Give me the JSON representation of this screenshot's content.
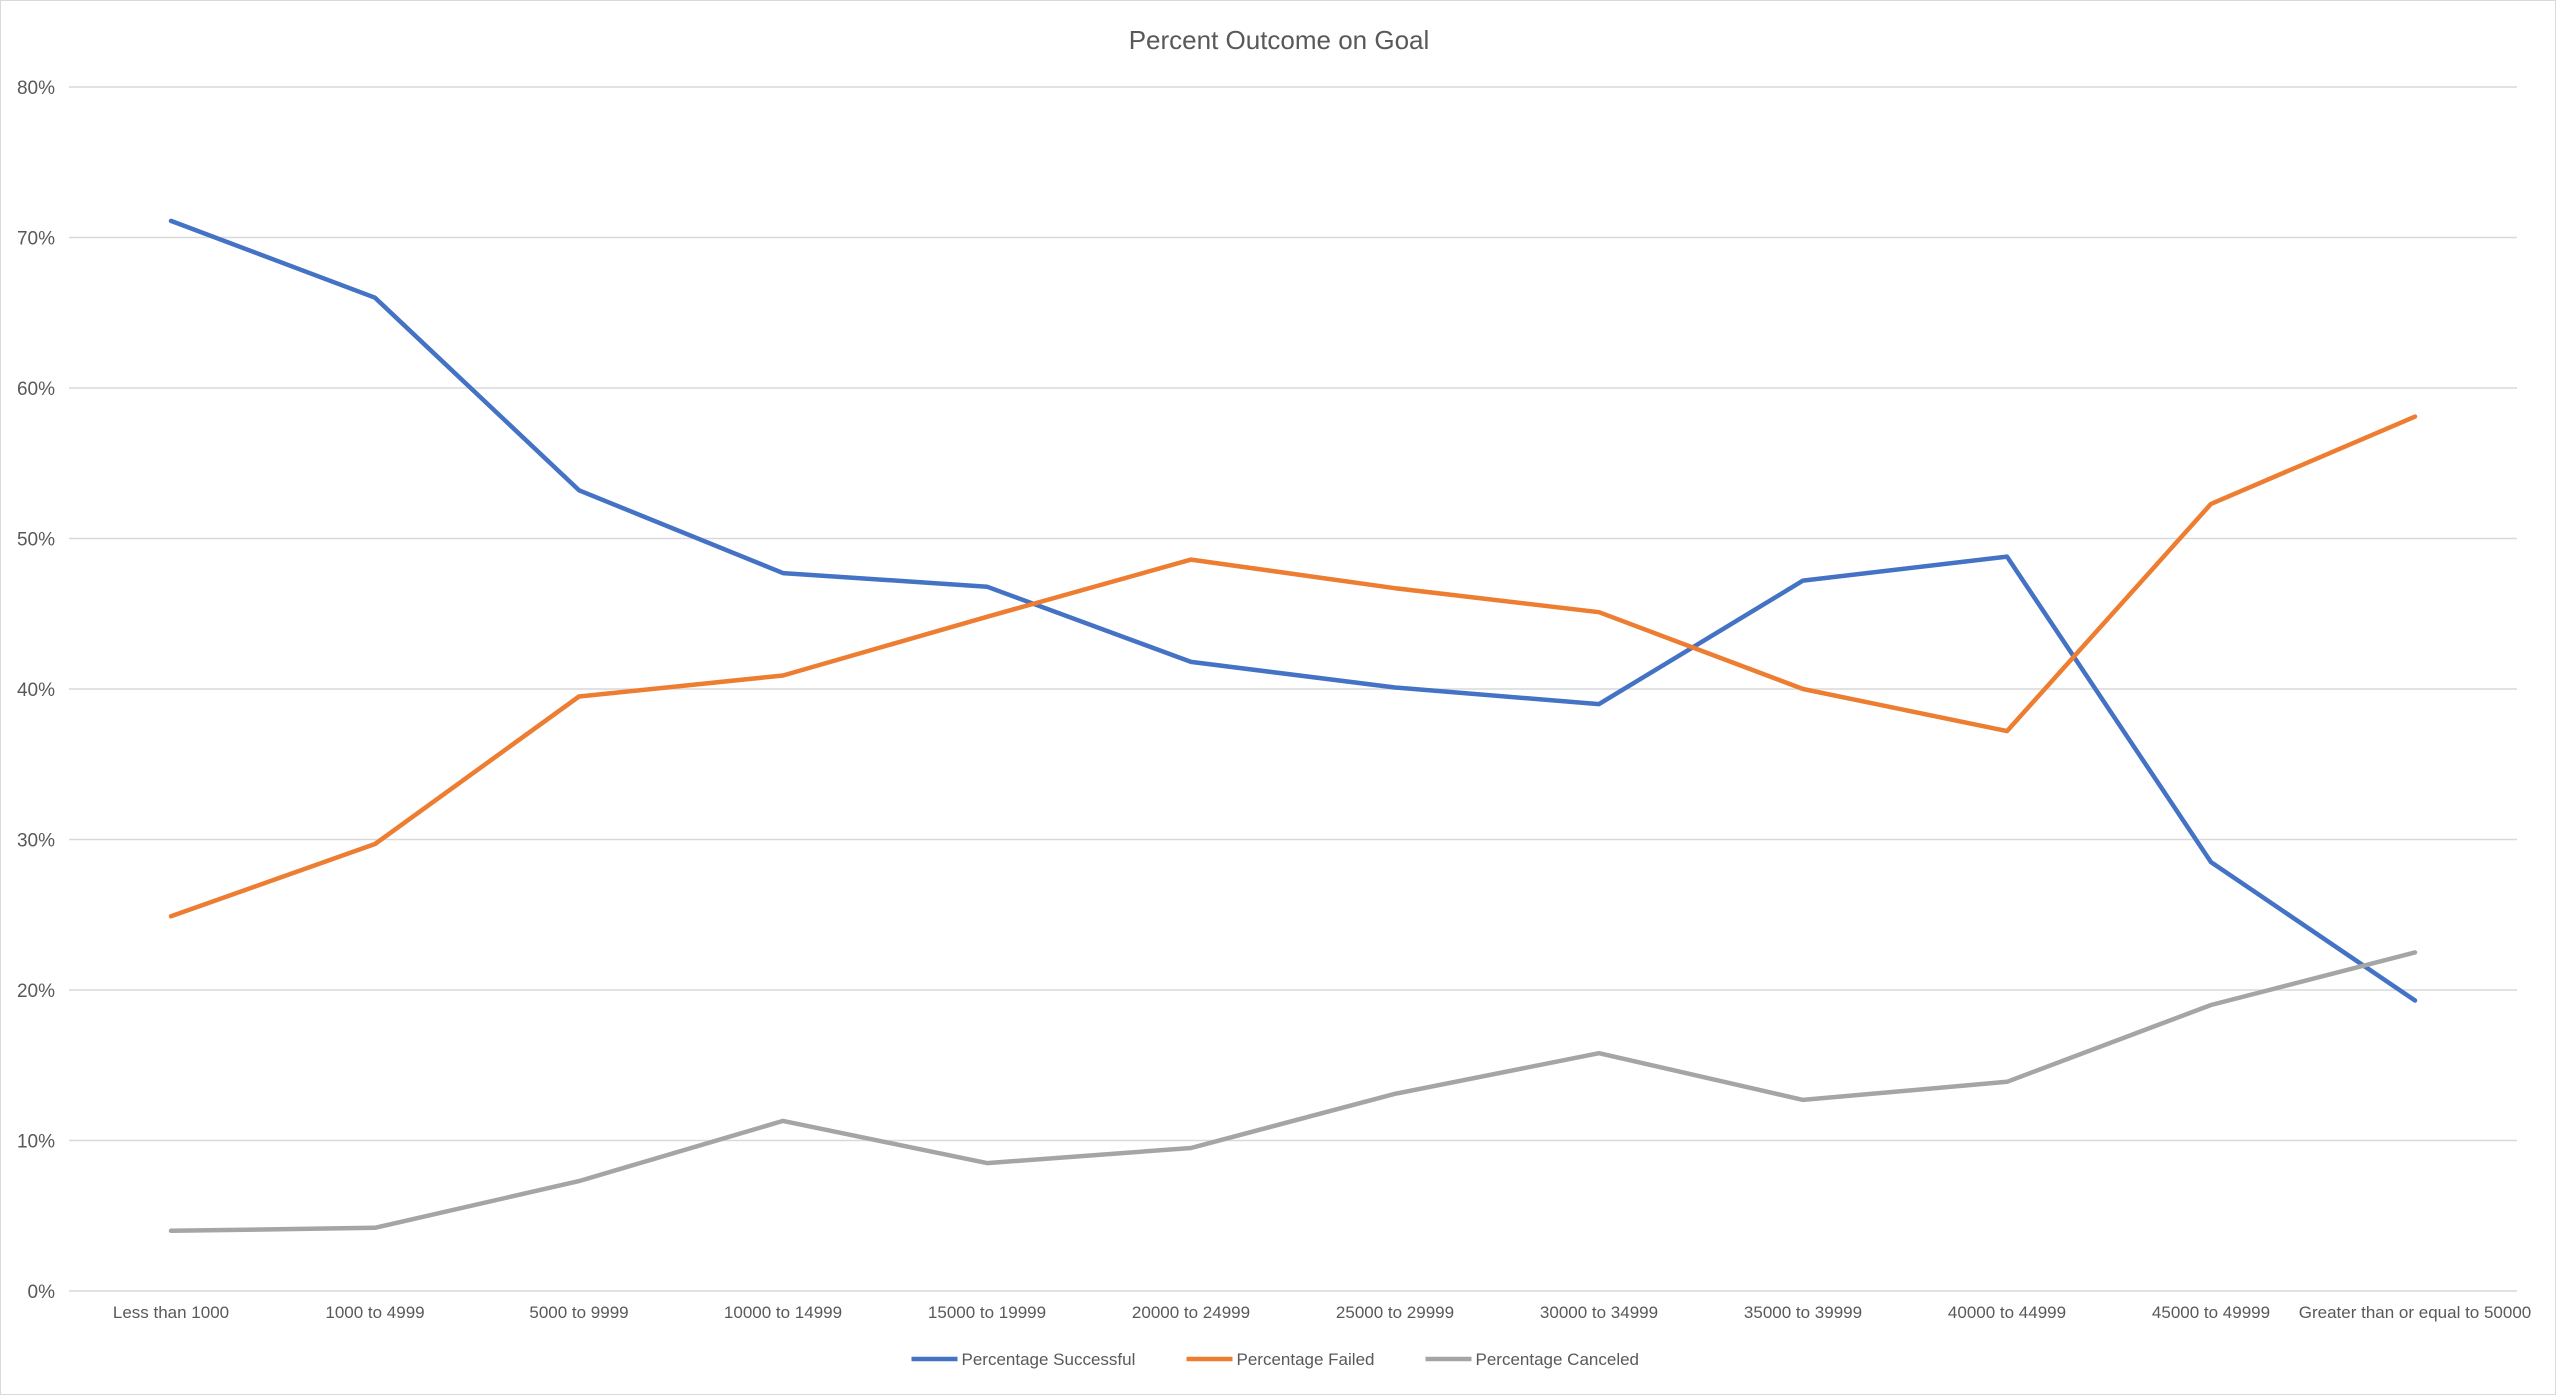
{
  "chart_data": {
    "type": "line",
    "title": "Percent Outcome on Goal",
    "xlabel": "",
    "ylabel": "",
    "ylim": [
      0,
      80
    ],
    "yticks": [
      "0%",
      "10%",
      "20%",
      "30%",
      "40%",
      "50%",
      "60%",
      "70%",
      "80%"
    ],
    "grid": true,
    "legend_position": "bottom",
    "categories": [
      "Less than 1000",
      "1000 to 4999",
      "5000 to 9999",
      "10000 to 14999",
      "15000 to 19999",
      "20000 to 24999",
      "25000 to 29999",
      "30000 to 34999",
      "35000 to 39999",
      "40000 to 44999",
      "45000 to 49999",
      "Greater than or equal to 50000"
    ],
    "series": [
      {
        "name": "Percentage Successful",
        "color": "#4472C4",
        "values": [
          71.1,
          66.0,
          53.2,
          47.7,
          46.8,
          41.8,
          40.1,
          39.0,
          47.2,
          48.8,
          28.5,
          19.3
        ]
      },
      {
        "name": "Percentage Failed",
        "color": "#ED7D31",
        "values": [
          24.9,
          29.7,
          39.5,
          40.9,
          44.8,
          48.6,
          46.7,
          45.1,
          40.0,
          37.2,
          52.3,
          58.1
        ]
      },
      {
        "name": "Percentage Canceled",
        "color": "#A5A5A5",
        "values": [
          4.0,
          4.2,
          7.3,
          11.3,
          8.5,
          9.5,
          13.1,
          15.8,
          12.7,
          13.9,
          19.0,
          22.5
        ]
      }
    ]
  }
}
